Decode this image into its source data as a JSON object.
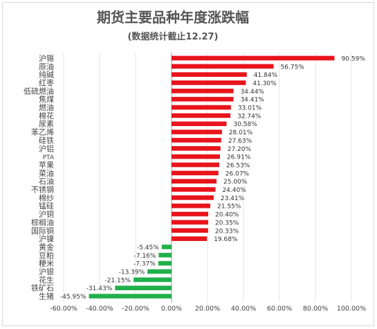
{
  "chart_data": {
    "type": "bar",
    "orientation": "horizontal",
    "title": "期货主要品种年度涨跌幅",
    "subtitle": "(数据统计截止12.27)",
    "categories": [
      "沪锡",
      "原油",
      "纯碱",
      "红枣",
      "低硫燃油",
      "焦煤",
      "燃油",
      "棉花",
      "尿素",
      "苯乙烯",
      "硅铁",
      "沪铝",
      "PTA",
      "苹果",
      "菜油",
      "石油",
      "不锈钢",
      "棉纱",
      "锰硅",
      "沪铜",
      "棕榈油",
      "国际铜",
      "沪镍",
      "黄金",
      "豆粕",
      "粳米",
      "沪银",
      "花生",
      "铁矿石",
      "生猪"
    ],
    "values": [
      90.59,
      56.75,
      41.84,
      41.3,
      34.44,
      34.41,
      33.01,
      32.74,
      30.58,
      28.01,
      27.63,
      27.2,
      26.91,
      26.53,
      26.07,
      25.0,
      24.4,
      23.41,
      21.55,
      20.4,
      20.35,
      20.33,
      19.68,
      -5.45,
      -7.16,
      -7.37,
      -13.39,
      -21.15,
      -31.43,
      -45.95
    ],
    "value_labels": [
      "90.59%",
      "56.75%",
      "41.84%",
      "41.30%",
      "34.44%",
      "34.41%",
      "33.01%",
      "32.74%",
      "30.58%",
      "28.01%",
      "27.63%",
      "27.20%",
      "26.91%",
      "26.53%",
      "26.07%",
      "25.00%",
      "24.40%",
      "23.41%",
      "21.55%",
      "20.40%",
      "20.35%",
      "20.33%",
      "19.68%",
      "-5.45%",
      "-7.16%",
      "-7.37%",
      "-13.39%",
      "-21.15%",
      "-31.43%",
      "-45.95%"
    ],
    "x_ticks": [
      -60,
      -40,
      -20,
      0,
      20,
      40,
      60,
      80,
      100
    ],
    "x_tick_labels": [
      "-60.00%",
      "-40.00%",
      "-20.00%",
      "0.00%",
      "20.00%",
      "40.00%",
      "60.00%",
      "80.00%",
      "100.00%"
    ],
    "xlim": [
      -60,
      100
    ],
    "grid": true,
    "colors": {
      "positive": "#e8141c",
      "negative": "#22b04b",
      "grid": "#e4e4e4",
      "axis": "#999999"
    }
  }
}
